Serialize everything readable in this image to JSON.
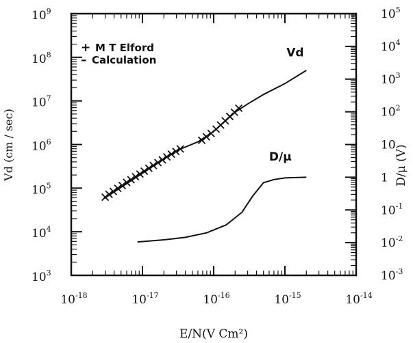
{
  "chart_data": {
    "type": "line",
    "title": "",
    "xlabel": "E/N(V Cm²)",
    "ylabel_left": "Vd (cm / sec)",
    "ylabel_right": "D/μ (V)",
    "x_scale": "log",
    "xlim": [
      1e-18,
      1e-14
    ],
    "x_ticks": [
      {
        "value": 1e-18,
        "base": "10",
        "exp": "-18"
      },
      {
        "value": 1e-17,
        "base": "10",
        "exp": "-17"
      },
      {
        "value": 1e-16,
        "base": "10",
        "exp": "-16"
      },
      {
        "value": 1e-15,
        "base": "10",
        "exp": "-15"
      },
      {
        "value": 1e-14,
        "base": "10",
        "exp": "-14"
      }
    ],
    "left_axis": {
      "scale": "log",
      "ylim": [
        1000.0,
        1000000000.0
      ],
      "ticks": [
        {
          "value": 1000.0,
          "base": "10",
          "exp": "3"
        },
        {
          "value": 10000.0,
          "base": "10",
          "exp": "4"
        },
        {
          "value": 100000.0,
          "base": "10",
          "exp": "5"
        },
        {
          "value": 1000000.0,
          "base": "10",
          "exp": "6"
        },
        {
          "value": 10000000.0,
          "base": "10",
          "exp": "7"
        },
        {
          "value": 100000000.0,
          "base": "10",
          "exp": "8"
        },
        {
          "value": 1000000000.0,
          "base": "10",
          "exp": "9"
        }
      ]
    },
    "right_axis": {
      "scale": "log",
      "ylim": [
        0.001,
        100000.0
      ],
      "ticks": [
        {
          "value": 0.001,
          "base": "10",
          "exp": "-3"
        },
        {
          "value": 0.01,
          "base": "10",
          "exp": "-2"
        },
        {
          "value": 0.1,
          "base": "10",
          "exp": "-1"
        },
        {
          "value": 1,
          "base": "1",
          "exp": ""
        },
        {
          "value": 10,
          "base": "10",
          "exp": ""
        },
        {
          "value": 100,
          "base": "10",
          "exp": "2"
        },
        {
          "value": 1000,
          "base": "10",
          "exp": "3"
        },
        {
          "value": 10000,
          "base": "10",
          "exp": "4"
        },
        {
          "value": 100000,
          "base": "10",
          "exp": "5"
        }
      ]
    },
    "legend": {
      "placement": "top-left",
      "entries": [
        {
          "symbol": "+",
          "label": "M T Elford"
        },
        {
          "symbol": "–",
          "label": "Calculation"
        }
      ]
    },
    "series": [
      {
        "name": "M T Elford",
        "kind": "markers",
        "axis": "left",
        "points": [
          {
            "x": 3e-18,
            "y": 62000.0
          },
          {
            "x": 3.4e-18,
            "y": 72000.0
          },
          {
            "x": 3.9e-18,
            "y": 84000.0
          },
          {
            "x": 4.5e-18,
            "y": 99000.0
          },
          {
            "x": 5.2e-18,
            "y": 115000.0
          },
          {
            "x": 6e-18,
            "y": 135000.0
          },
          {
            "x": 6.9e-18,
            "y": 156000.0
          },
          {
            "x": 8e-18,
            "y": 182000.0
          },
          {
            "x": 9.2e-18,
            "y": 210000.0
          },
          {
            "x": 1.06e-17,
            "y": 245000.0
          },
          {
            "x": 1.23e-17,
            "y": 285000.0
          },
          {
            "x": 1.42e-17,
            "y": 330000.0
          },
          {
            "x": 1.65e-17,
            "y": 385000.0
          },
          {
            "x": 1.9e-17,
            "y": 445000.0
          },
          {
            "x": 2.2e-17,
            "y": 520000.0
          },
          {
            "x": 2.55e-17,
            "y": 600000.0
          },
          {
            "x": 2.95e-17,
            "y": 690000.0
          },
          {
            "x": 3.4e-17,
            "y": 790000.0
          },
          {
            "x": 6.8e-17,
            "y": 1250000.0
          },
          {
            "x": 7.9e-17,
            "y": 1500000.0
          },
          {
            "x": 9.2e-17,
            "y": 1800000.0
          },
          {
            "x": 1.08e-16,
            "y": 2250000.0
          },
          {
            "x": 1.25e-16,
            "y": 2800000.0
          },
          {
            "x": 1.45e-16,
            "y": 3500000.0
          },
          {
            "x": 1.68e-16,
            "y": 4400000.0
          },
          {
            "x": 1.95e-16,
            "y": 5500000.0
          },
          {
            "x": 2.25e-16,
            "y": 6800000.0
          }
        ]
      },
      {
        "name": "Vd",
        "kind": "line",
        "axis": "left",
        "label": "Vd",
        "points": [
          {
            "x": 2.9e-18,
            "y": 58000.0
          },
          {
            "x": 1e-17,
            "y": 220000.0
          },
          {
            "x": 3e-17,
            "y": 720000.0
          },
          {
            "x": 6e-17,
            "y": 1150000.0
          },
          {
            "x": 1e-16,
            "y": 2000000.0
          },
          {
            "x": 2e-16,
            "y": 5500000.0
          },
          {
            "x": 3e-16,
            "y": 8500000.0
          },
          {
            "x": 5e-16,
            "y": 14000000.0
          },
          {
            "x": 1e-15,
            "y": 25000000.0
          },
          {
            "x": 2e-15,
            "y": 50000000.0
          }
        ]
      },
      {
        "name": "D/μ",
        "kind": "line",
        "axis": "right",
        "label": "D/μ",
        "points": [
          {
            "x": 8.5e-18,
            "y": 0.0105
          },
          {
            "x": 2e-17,
            "y": 0.0122
          },
          {
            "x": 4e-17,
            "y": 0.0145
          },
          {
            "x": 8e-17,
            "y": 0.02
          },
          {
            "x": 1.5e-16,
            "y": 0.035
          },
          {
            "x": 2.5e-16,
            "y": 0.085
          },
          {
            "x": 3.5e-16,
            "y": 0.26
          },
          {
            "x": 5e-16,
            "y": 0.68
          },
          {
            "x": 7e-16,
            "y": 0.85
          },
          {
            "x": 1e-15,
            "y": 0.95
          },
          {
            "x": 2e-15,
            "y": 1.0
          }
        ]
      }
    ]
  }
}
